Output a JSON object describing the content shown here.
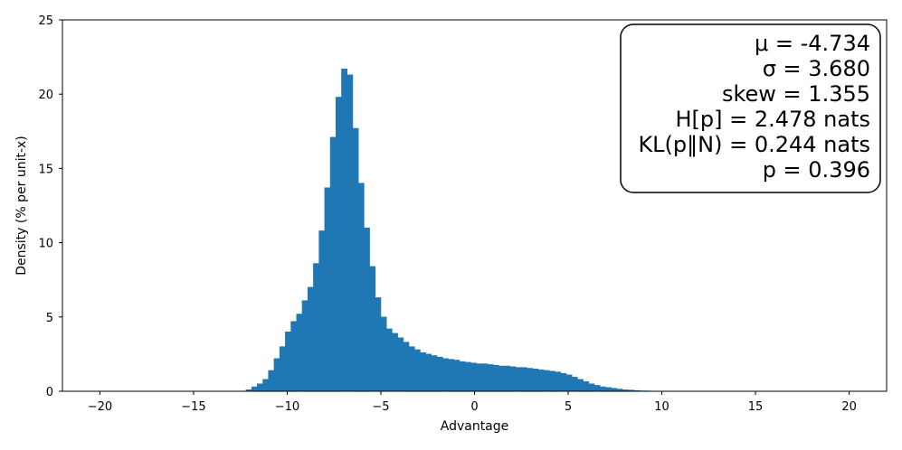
{
  "chart_data": {
    "type": "bar",
    "title": "",
    "xlabel": "Advantage",
    "ylabel": "Density (% per unit-x)",
    "xlim": [
      -22,
      22
    ],
    "ylim": [
      0,
      25
    ],
    "x_ticks": [
      -20,
      -15,
      -10,
      -5,
      0,
      5,
      10,
      15,
      20
    ],
    "x_tick_labels": [
      "−20",
      "−15",
      "−10",
      "−5",
      "0",
      "5",
      "10",
      "15",
      "20"
    ],
    "y_ticks": [
      0,
      5,
      10,
      15,
      20,
      25
    ],
    "y_tick_labels": [
      "0",
      "5",
      "10",
      "15",
      "20",
      "25"
    ],
    "grid": false,
    "bar_color": "#1f77b4",
    "bin_width": 0.3,
    "bins_start": [
      -12.2,
      -11.9,
      -11.6,
      -11.3,
      -11.0,
      -10.7,
      -10.4,
      -10.1,
      -9.8,
      -9.5,
      -9.2,
      -8.9,
      -8.6,
      -8.3,
      -8.0,
      -7.7,
      -7.4,
      -7.1,
      -6.8,
      -6.5,
      -6.2,
      -5.9,
      -5.6,
      -5.3,
      -5.0,
      -4.7,
      -4.4,
      -4.1,
      -3.8,
      -3.5,
      -3.2,
      -2.9,
      -2.6,
      -2.3,
      -2.0,
      -1.7,
      -1.4,
      -1.1,
      -0.8,
      -0.5,
      -0.2,
      0.1,
      0.4,
      0.7,
      1.0,
      1.3,
      1.6,
      1.9,
      2.2,
      2.5,
      2.8,
      3.1,
      3.4,
      3.7,
      4.0,
      4.3,
      4.6,
      4.9,
      5.2,
      5.5,
      5.8,
      6.1,
      6.4,
      6.7,
      7.0,
      7.3,
      7.6,
      7.9,
      8.2,
      8.5,
      8.8,
      9.1,
      9.4,
      9.7
    ],
    "values": [
      0.1,
      0.3,
      0.5,
      0.8,
      1.4,
      2.2,
      3.0,
      4.0,
      4.7,
      5.2,
      6.1,
      7.0,
      8.6,
      10.8,
      13.7,
      17.1,
      19.8,
      21.7,
      21.3,
      17.7,
      14.0,
      11.0,
      8.4,
      6.3,
      5.0,
      4.2,
      3.9,
      3.6,
      3.3,
      3.0,
      2.8,
      2.6,
      2.5,
      2.4,
      2.3,
      2.2,
      2.15,
      2.1,
      2.0,
      1.95,
      1.9,
      1.85,
      1.85,
      1.8,
      1.75,
      1.7,
      1.7,
      1.65,
      1.6,
      1.6,
      1.55,
      1.5,
      1.45,
      1.4,
      1.35,
      1.3,
      1.2,
      1.1,
      0.95,
      0.8,
      0.65,
      0.5,
      0.4,
      0.3,
      0.25,
      0.2,
      0.15,
      0.1,
      0.08,
      0.05,
      0.03,
      0.02,
      0.01,
      0.0
    ],
    "annotation": {
      "placement": "top-right",
      "lines": [
        "μ = -4.734",
        "σ = 3.680",
        "skew = 1.355",
        "H[p] = 2.478 nats",
        "KL(p‖N) = 0.244 nats",
        "p = 0.396"
      ]
    }
  }
}
